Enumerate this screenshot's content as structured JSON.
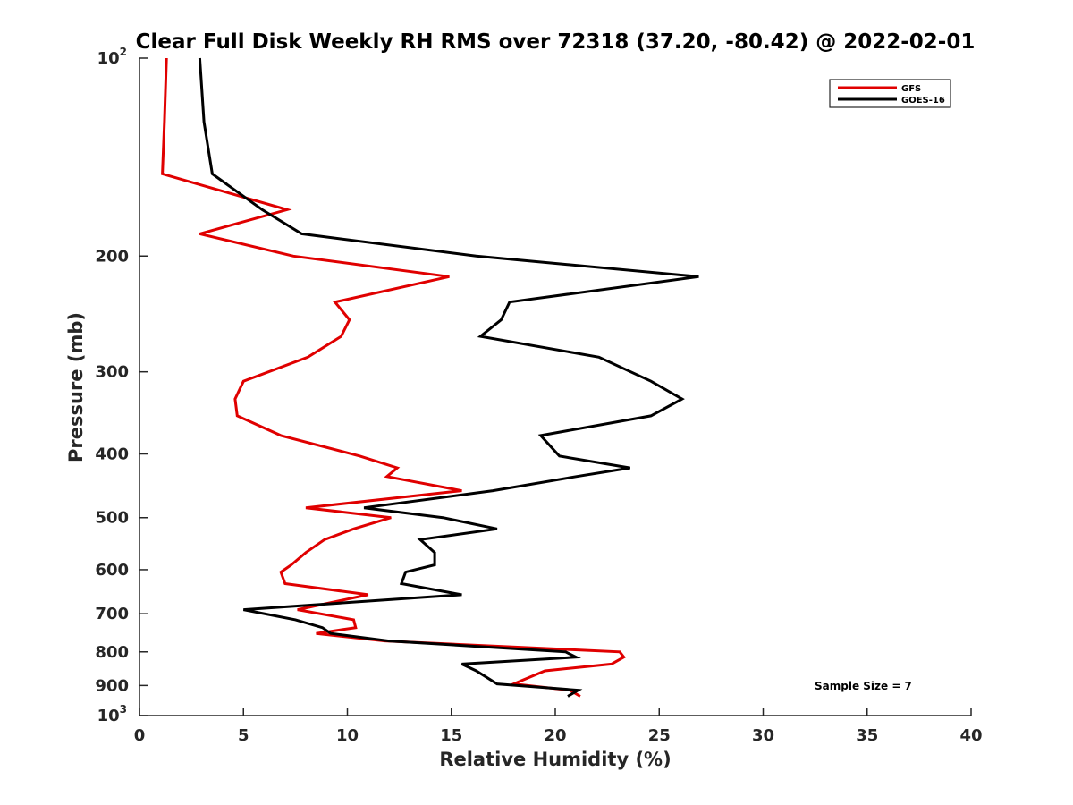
{
  "chart_data": {
    "type": "line",
    "title": "Clear Full Disk Weekly RH RMS over 72318 (37.20, -80.42) @ 2022-02-01",
    "xlabel": "Relative Humidity (%)",
    "ylabel": "Pressure (mb)",
    "xlim": [
      0,
      40
    ],
    "ylim": [
      100,
      1000
    ],
    "yscale": "log",
    "y_reversed": true,
    "x_ticks": [
      "0",
      "5",
      "10",
      "15",
      "20",
      "25",
      "30",
      "35",
      "40"
    ],
    "y_ticks": [
      {
        "value": 100,
        "label": "10",
        "sup": "2"
      },
      {
        "value": 200,
        "label": "200",
        "sup": ""
      },
      {
        "value": 300,
        "label": "300",
        "sup": ""
      },
      {
        "value": 400,
        "label": "400",
        "sup": ""
      },
      {
        "value": 500,
        "label": "500",
        "sup": ""
      },
      {
        "value": 600,
        "label": "600",
        "sup": ""
      },
      {
        "value": 700,
        "label": "700",
        "sup": ""
      },
      {
        "value": 800,
        "label": "800",
        "sup": ""
      },
      {
        "value": 900,
        "label": "900",
        "sup": ""
      },
      {
        "value": 1000,
        "label": "10",
        "sup": "3"
      }
    ],
    "grid": false,
    "legend_position": "top-right",
    "annotation": "Sample Size = 7",
    "series": [
      {
        "name": "GFS",
        "color": "#e00000",
        "points": [
          [
            1.3,
            100
          ],
          [
            1.2,
            125
          ],
          [
            1.1,
            150
          ],
          [
            7.1,
            170
          ],
          [
            2.9,
            185
          ],
          [
            7.4,
            200
          ],
          [
            14.9,
            215
          ],
          [
            9.4,
            235
          ],
          [
            10.1,
            250
          ],
          [
            9.7,
            265
          ],
          [
            8.1,
            285
          ],
          [
            5.0,
            310
          ],
          [
            4.6,
            330
          ],
          [
            4.7,
            350
          ],
          [
            6.8,
            375
          ],
          [
            10.6,
            403
          ],
          [
            12.4,
            420
          ],
          [
            11.9,
            433
          ],
          [
            15.5,
            455
          ],
          [
            8.0,
            483
          ],
          [
            12.1,
            500
          ],
          [
            10.3,
            520
          ],
          [
            8.9,
            540
          ],
          [
            8.0,
            565
          ],
          [
            7.3,
            590
          ],
          [
            6.8,
            605
          ],
          [
            7.0,
            630
          ],
          [
            11.0,
            655
          ],
          [
            7.6,
            690
          ],
          [
            10.3,
            715
          ],
          [
            10.4,
            735
          ],
          [
            8.5,
            750
          ],
          [
            11.8,
            770
          ],
          [
            23.1,
            800
          ],
          [
            23.3,
            815
          ],
          [
            22.7,
            835
          ],
          [
            19.5,
            855
          ],
          [
            18.0,
            895
          ],
          [
            20.7,
            915
          ],
          [
            21.2,
            935
          ]
        ]
      },
      {
        "name": "GOES-16",
        "color": "#000000",
        "points": [
          [
            2.9,
            100
          ],
          [
            3.1,
            125
          ],
          [
            3.5,
            150
          ],
          [
            5.9,
            170
          ],
          [
            7.8,
            185
          ],
          [
            16.2,
            200
          ],
          [
            26.9,
            215
          ],
          [
            17.8,
            235
          ],
          [
            17.4,
            250
          ],
          [
            16.4,
            265
          ],
          [
            22.1,
            285
          ],
          [
            24.6,
            310
          ],
          [
            26.1,
            330
          ],
          [
            24.6,
            350
          ],
          [
            19.3,
            375
          ],
          [
            20.2,
            403
          ],
          [
            23.6,
            420
          ],
          [
            21.0,
            433
          ],
          [
            17.0,
            455
          ],
          [
            10.8,
            483
          ],
          [
            14.6,
            500
          ],
          [
            17.2,
            520
          ],
          [
            13.5,
            540
          ],
          [
            14.2,
            565
          ],
          [
            14.2,
            590
          ],
          [
            12.8,
            605
          ],
          [
            12.6,
            630
          ],
          [
            15.5,
            655
          ],
          [
            5.0,
            690
          ],
          [
            7.5,
            715
          ],
          [
            8.8,
            735
          ],
          [
            9.2,
            750
          ],
          [
            12.0,
            770
          ],
          [
            20.5,
            800
          ],
          [
            21.0,
            815
          ],
          [
            15.5,
            835
          ],
          [
            16.2,
            855
          ],
          [
            17.2,
            895
          ],
          [
            21.1,
            915
          ],
          [
            20.6,
            935
          ]
        ]
      }
    ]
  }
}
